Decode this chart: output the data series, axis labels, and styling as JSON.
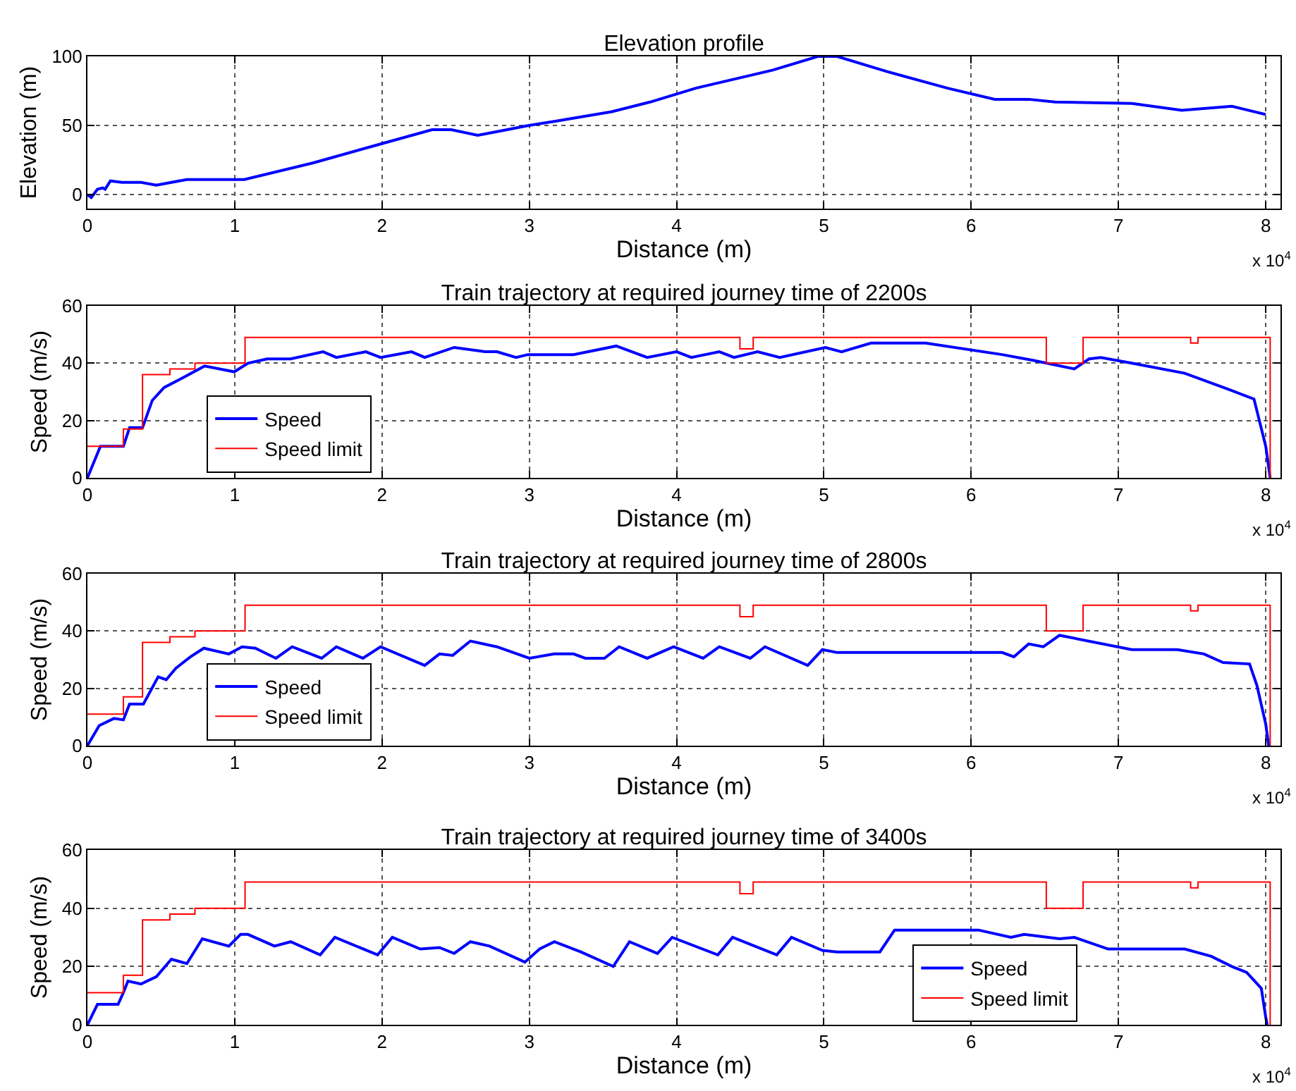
{
  "chart_data": [
    {
      "type": "line",
      "title": "Elevation profile",
      "xlabel": "Distance (m)",
      "ylabel": "Elevation (m)",
      "annotations": [
        "x 10$^{4}$"
      ],
      "grid": true,
      "legend": false,
      "xlim": [
        0,
        8.1
      ],
      "xticks": [
        0,
        1,
        2,
        3,
        4,
        5,
        6,
        7,
        8
      ],
      "ylim": [
        -10,
        100
      ],
      "yticks": [
        0,
        50,
        100
      ],
      "series": [
        {
          "color": "#0000ff",
          "x": [
            0,
            0.026,
            0.068,
            0.104,
            0.12,
            0.156,
            0.234,
            0.364,
            0.468,
            0.675,
            1.065,
            1.53,
            2.0,
            2.34,
            2.47,
            2.65,
            2.8,
            2.99,
            3.17,
            3.56,
            3.82,
            4.13,
            4.65,
            4.96,
            5.09,
            5.43,
            5.84,
            6.16,
            6.39,
            6.57,
            7.09,
            7.43,
            7.77,
            8.0
          ],
          "values": [
            0,
            -2,
            4,
            5,
            4,
            10,
            9,
            9,
            7,
            11,
            11,
            23,
            37,
            47,
            47,
            43,
            46,
            50,
            53,
            60,
            67,
            77,
            90,
            100,
            100,
            89,
            77,
            69,
            69,
            67,
            66,
            61,
            64,
            58
          ]
        }
      ]
    },
    {
      "type": "line",
      "title": "Train trajectory at required journey time of 2200s",
      "xlabel": "Distance (m)",
      "ylabel": "Speed (m/s)",
      "annotations": [
        "x 10$^{4}$"
      ],
      "grid": true,
      "legend": "bottom left",
      "xlim": [
        0,
        8.1
      ],
      "xticks": [
        0,
        1,
        2,
        3,
        4,
        5,
        6,
        7,
        8
      ],
      "ylim": [
        0,
        60
      ],
      "yticks": [
        0,
        20,
        40,
        60
      ],
      "series": [
        {
          "name": "Speed",
          "color": "#0000ff",
          "x": [
            0,
            0.088,
            0.244,
            0.286,
            0.374,
            0.44,
            0.52,
            0.65,
            0.795,
            0.997,
            1.09,
            1.22,
            1.38,
            1.6,
            1.69,
            1.89,
            1.99,
            2.2,
            2.29,
            2.49,
            2.7,
            2.78,
            2.91,
            2.99,
            3.3,
            3.59,
            3.8,
            4.0,
            4.1,
            4.29,
            4.39,
            4.55,
            4.7,
            5.01,
            5.12,
            5.32,
            5.69,
            6.21,
            6.42,
            6.7,
            6.8,
            6.88,
            7.09,
            7.45,
            7.74,
            7.92,
            8.0,
            8.03
          ],
          "values": [
            0,
            11,
            11,
            17.5,
            17.5,
            27,
            31.5,
            35,
            39,
            37,
            40,
            41.5,
            41.5,
            44,
            42,
            44,
            42,
            44,
            42,
            45.5,
            44,
            44,
            42,
            43,
            43,
            46,
            42,
            44,
            42,
            44,
            42,
            44,
            42,
            45.5,
            44,
            47,
            47,
            43,
            41,
            38,
            41.5,
            42,
            40,
            36.5,
            31,
            27.5,
            11,
            0
          ]
        },
        {
          "name": "Speed limit",
          "type": "step",
          "color": "#ff0000",
          "x": [
            0,
            0.244,
            0.374,
            0.56,
            0.73,
            1.07,
            4.43,
            4.52,
            6.51,
            6.76,
            7.49,
            7.54,
            8.03
          ],
          "values": [
            11,
            17,
            36,
            38,
            40,
            49,
            45,
            49,
            40,
            49,
            47,
            49,
            0
          ]
        }
      ]
    },
    {
      "type": "line",
      "title": "Train trajectory at required journey time of 2800s",
      "xlabel": "Distance (m)",
      "ylabel": "Speed (m/s)",
      "annotations": [
        "x 10$^{4}$"
      ],
      "grid": true,
      "legend": "bottom left",
      "xlim": [
        0,
        8.1
      ],
      "xticks": [
        0,
        1,
        2,
        3,
        4,
        5,
        6,
        7,
        8
      ],
      "ylim": [
        0,
        60
      ],
      "yticks": [
        0,
        20,
        40,
        60
      ],
      "series": [
        {
          "name": "Speed",
          "color": "#0000ff",
          "x": [
            0,
            0.08,
            0.18,
            0.244,
            0.286,
            0.38,
            0.48,
            0.535,
            0.6,
            0.7,
            0.79,
            0.96,
            1.05,
            1.14,
            1.28,
            1.39,
            1.59,
            1.69,
            1.87,
            1.99,
            2.29,
            2.39,
            2.48,
            2.6,
            2.78,
            3.0,
            3.17,
            3.3,
            3.38,
            3.51,
            3.61,
            3.8,
            3.98,
            4.18,
            4.29,
            4.5,
            4.6,
            4.89,
            4.99,
            5.09,
            6.21,
            6.29,
            6.39,
            6.49,
            6.6,
            7.09,
            7.4,
            7.58,
            7.71,
            7.89,
            7.94,
            8.0,
            8.02
          ],
          "values": [
            0,
            7,
            9.5,
            9,
            14.5,
            14.5,
            24,
            23,
            27,
            31,
            34,
            32,
            34.5,
            34,
            30.5,
            34.5,
            30.5,
            34.5,
            30.5,
            34.5,
            28,
            32,
            31.5,
            36.5,
            34.5,
            30.5,
            32,
            32,
            30.5,
            30.5,
            34.5,
            30.5,
            34.5,
            30.5,
            34.5,
            30.5,
            34.5,
            28,
            33.5,
            32.5,
            32.5,
            31,
            35.5,
            34.5,
            38.5,
            33.5,
            33.5,
            32,
            29,
            28.5,
            21,
            7.5,
            0
          ]
        },
        {
          "name": "Speed limit",
          "type": "step",
          "color": "#ff0000",
          "x": [
            0,
            0.244,
            0.374,
            0.56,
            0.73,
            1.07,
            4.43,
            4.52,
            6.51,
            6.76,
            7.49,
            7.54,
            8.03
          ],
          "values": [
            11,
            17,
            36,
            38,
            40,
            49,
            45,
            49,
            40,
            49,
            47,
            49,
            0
          ]
        }
      ]
    },
    {
      "type": "line",
      "title": "Train trajectory at required journey time of 3400s",
      "xlabel": "Distance (m)",
      "ylabel": "Speed (m/s)",
      "annotations": [
        "x 10$^{4}$"
      ],
      "grid": true,
      "legend": "bottom right",
      "xlim": [
        0,
        8.1
      ],
      "xticks": [
        0,
        1,
        2,
        3,
        4,
        5,
        6,
        7,
        8
      ],
      "ylim": [
        0,
        60
      ],
      "yticks": [
        0,
        20,
        40,
        60
      ],
      "series": [
        {
          "name": "Speed",
          "color": "#0000ff",
          "x": [
            0,
            0.068,
            0.208,
            0.244,
            0.275,
            0.364,
            0.468,
            0.57,
            0.675,
            0.78,
            0.96,
            1.04,
            1.09,
            1.27,
            1.38,
            1.58,
            1.68,
            1.97,
            2.07,
            2.26,
            2.39,
            2.49,
            2.6,
            2.73,
            2.97,
            3.07,
            3.17,
            3.35,
            3.57,
            3.68,
            3.87,
            3.97,
            4.28,
            4.38,
            4.68,
            4.78,
            4.99,
            5.09,
            5.38,
            5.48,
            6.05,
            6.27,
            6.36,
            6.6,
            6.7,
            6.93,
            7.45,
            7.63,
            7.77,
            7.87,
            7.97,
            8.0,
            8.01
          ],
          "values": [
            0,
            7,
            7,
            11,
            15,
            14,
            16.5,
            22.5,
            21,
            29.5,
            27,
            31,
            31,
            27,
            28.5,
            24,
            30,
            24,
            30,
            26,
            26.5,
            24.5,
            28.5,
            27,
            21.5,
            26,
            28.5,
            25,
            20,
            28.5,
            24.5,
            30,
            24,
            30,
            24,
            30,
            25.5,
            25,
            25,
            32.5,
            32.5,
            30,
            31,
            29.5,
            30,
            26,
            26,
            23.5,
            20,
            18,
            12.5,
            2.5,
            0
          ]
        },
        {
          "name": "Speed limit",
          "type": "step",
          "color": "#ff0000",
          "x": [
            0,
            0.244,
            0.374,
            0.56,
            0.73,
            1.07,
            4.43,
            4.52,
            6.51,
            6.76,
            7.49,
            7.54,
            8.03
          ],
          "values": [
            11,
            17,
            36,
            38,
            40,
            49,
            45,
            49,
            40,
            49,
            47,
            49,
            0
          ]
        }
      ]
    }
  ]
}
